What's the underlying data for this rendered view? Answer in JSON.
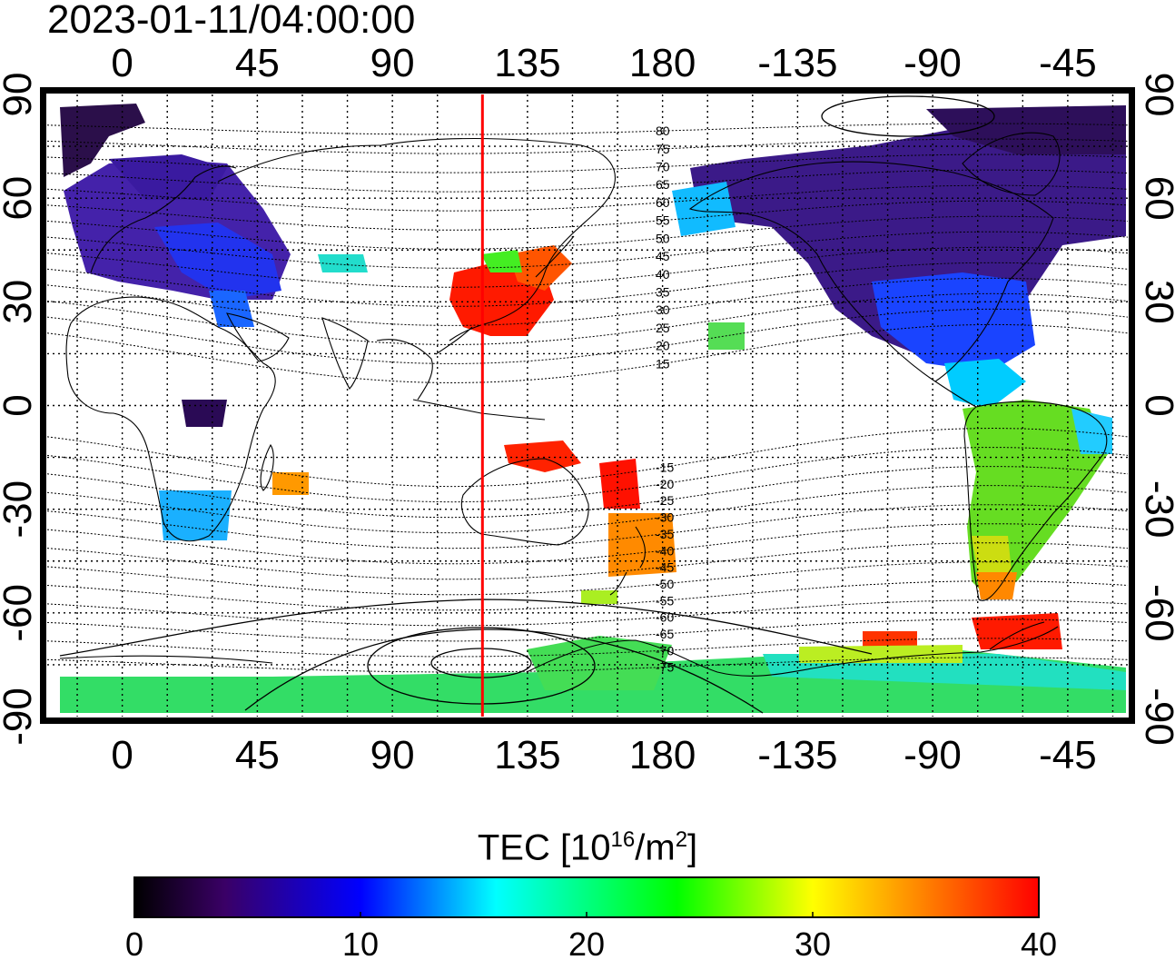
{
  "title": "2023-01-11/04:00:00",
  "map": {
    "projection": "equirectangular",
    "lon_range": [
      -25,
      335
    ],
    "lat_range": [
      -90,
      90
    ],
    "top_tick_labels": [
      "0",
      "45",
      "90",
      "135",
      "180",
      "-135",
      "-90",
      "-45"
    ],
    "bottom_tick_labels": [
      "0",
      "45",
      "90",
      "135",
      "180",
      "-135",
      "-90",
      "-45"
    ],
    "left_tick_labels": [
      "90",
      "60",
      "30",
      "0",
      "-30",
      "-60",
      "-90"
    ],
    "right_tick_labels": [
      "90",
      "60",
      "30",
      "0",
      "-30",
      "-60",
      "-90"
    ],
    "grid": "dotted every 15 degrees",
    "marker_line_lon": 120,
    "marker_line_color": "#ff0000",
    "magnetic_lat_labels": [
      "80",
      "75",
      "70",
      "65",
      "60",
      "55",
      "50",
      "45",
      "40",
      "35",
      "30",
      "25",
      "20",
      "15",
      "-15",
      "-20",
      "-25",
      "-30",
      "-35",
      "-40",
      "-45",
      "-50",
      "-55",
      "-60",
      "-65",
      "-70",
      "-75"
    ]
  },
  "colorbar": {
    "title_text": "TEC  [10",
    "title_exp": "16",
    "title_unit": "/m",
    "title_unit_exp": "2",
    "title_close": "]",
    "min": 0,
    "max": 40,
    "tick_labels": [
      "0",
      "10",
      "20",
      "30",
      "40"
    ],
    "colors": [
      "#000000",
      "#3a0066",
      "#0000ff",
      "#00ffff",
      "#00ff00",
      "#ffff00",
      "#ff0000"
    ]
  },
  "chart_data": {
    "type": "heatmap",
    "quantity": "TEC",
    "unit": "10^16/m^2",
    "value_range": [
      0,
      40
    ],
    "regions": [
      {
        "lon": [
          0,
          30
        ],
        "lat": [
          40,
          70
        ],
        "tec": 8
      },
      {
        "lon": [
          -20,
          10
        ],
        "lat": [
          65,
          85
        ],
        "tec": 3
      },
      {
        "lon": [
          30,
          60
        ],
        "lat": [
          35,
          60
        ],
        "tec": 9
      },
      {
        "lon": [
          120,
          145
        ],
        "lat": [
          20,
          40
        ],
        "tec": 38
      },
      {
        "lon": [
          160,
          180
        ],
        "lat": [
          -50,
          -25
        ],
        "tec": 37
      },
      {
        "lon": [
          -125,
          -70
        ],
        "lat": [
          25,
          60
        ],
        "tec": 4
      },
      {
        "lon": [
          -70,
          -40
        ],
        "lat": [
          -55,
          -15
        ],
        "tec": 25
      },
      {
        "lon": [
          -80,
          -50
        ],
        "lat": [
          -70,
          -60
        ],
        "tec": 39
      },
      {
        "lon": [
          -25,
          335
        ],
        "lat": [
          -90,
          -78
        ],
        "tec": 24
      }
    ]
  }
}
